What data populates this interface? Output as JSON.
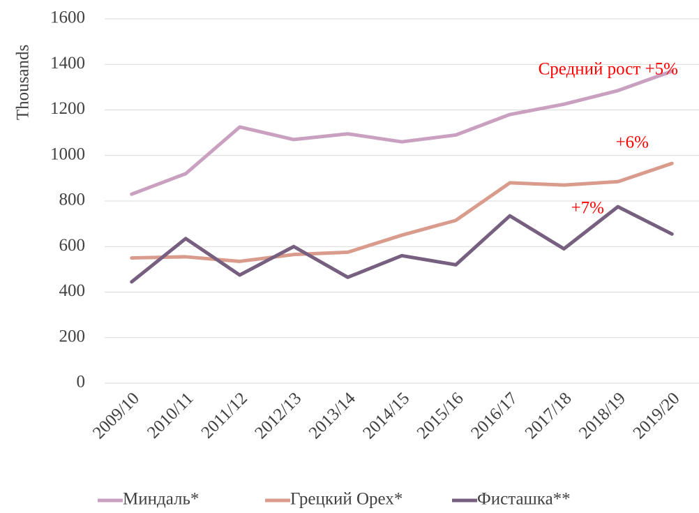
{
  "chart_data": {
    "type": "line",
    "y_label": "Thousands",
    "categories": [
      "2009/10",
      "2010/11",
      "2011/12",
      "2012/13",
      "2013/14",
      "2014/15",
      "2015/16",
      "2016/17",
      "2017/18",
      "2018/19",
      "2019/20"
    ],
    "series": [
      {
        "name": "Миндаль*",
        "color": "#c9a0c0",
        "values": [
          830,
          920,
          1125,
          1070,
          1095,
          1060,
          1090,
          1180,
          1225,
          1285,
          1370
        ]
      },
      {
        "name": "Грецкий Орех*",
        "color": "#d99b8b",
        "values": [
          550,
          555,
          535,
          565,
          575,
          650,
          715,
          880,
          870,
          885,
          965
        ]
      },
      {
        "name": "Фисташка**",
        "color": "#775f80",
        "values": [
          445,
          635,
          475,
          600,
          465,
          560,
          520,
          735,
          590,
          775,
          655
        ]
      }
    ],
    "annotations": [
      "Средний рост +5%",
      "+6%",
      "+7%"
    ],
    "annotation_color": "#ff0000",
    "ylim": [
      0,
      1600
    ],
    "yticks": [
      0,
      200,
      400,
      600,
      800,
      1000,
      1200,
      1400,
      1600
    ],
    "grid": true,
    "legend": "bottom"
  }
}
